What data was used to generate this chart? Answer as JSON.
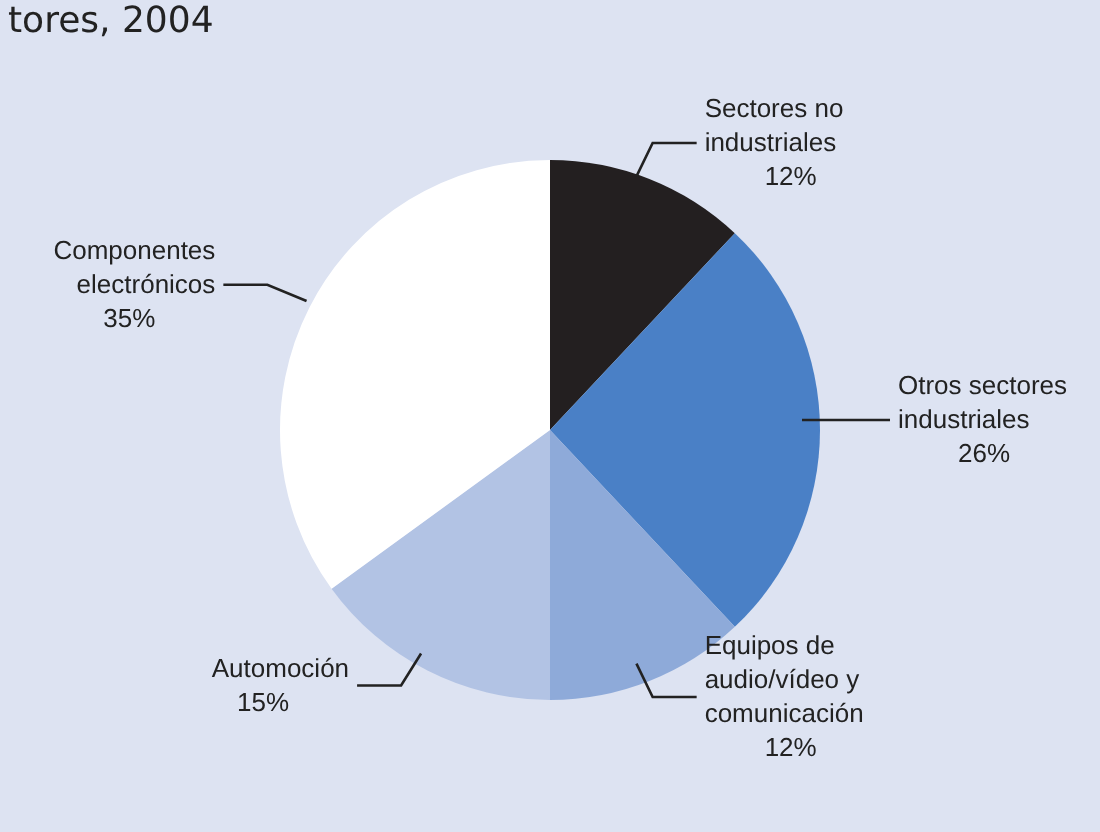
{
  "chart_data": {
    "type": "pie",
    "title": "tores, 2004",
    "categories": [
      "Sectores no industriales",
      "Otros sectores industriales",
      "Equipos de audio/vídeo y comunicación",
      "Automoción",
      "Componentes electrónicos"
    ],
    "values": [
      12,
      26,
      12,
      15,
      35
    ],
    "value_labels": [
      "12%",
      "26%",
      "12%",
      "15%",
      "35%"
    ],
    "colors": [
      "#231f20",
      "#4a80c6",
      "#8eaad9",
      "#b2c3e4",
      "#ffffff"
    ],
    "legend": false
  }
}
